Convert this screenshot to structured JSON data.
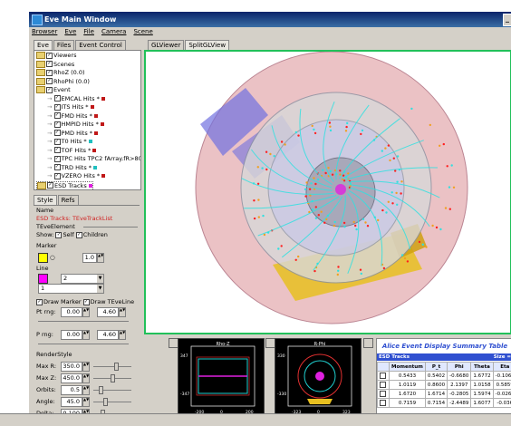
{
  "window": {
    "title": "Eve Main Window",
    "close_label": "_"
  },
  "menu": [
    {
      "label": "Browser"
    },
    {
      "label": "Eve"
    },
    {
      "label": "File"
    },
    {
      "label": "Camera"
    },
    {
      "label": "Scene"
    }
  ],
  "left_tabs": [
    "Eve",
    "Files",
    "Event Control"
  ],
  "viewer_tabs": [
    "GLViewer",
    "SplitGLView"
  ],
  "tree": [
    {
      "label": "Viewers",
      "indent": 0,
      "folder": true,
      "check": true
    },
    {
      "label": "Scenes",
      "indent": 0,
      "folder": true,
      "check": true
    },
    {
      "label": "RhoZ (0.0)",
      "indent": 0,
      "folder": true,
      "check": true
    },
    {
      "label": "RhoPhi (0.0)",
      "indent": 0,
      "folder": true,
      "check": true
    },
    {
      "label": "Event",
      "indent": 0,
      "folder": true,
      "check": true
    },
    {
      "label": "EMCAL Hits *",
      "indent": 1,
      "check": true,
      "color": "#c01818"
    },
    {
      "label": "ITS Hits *",
      "indent": 1,
      "check": true,
      "color": "#c01818"
    },
    {
      "label": "FMD Hits *",
      "indent": 1,
      "check": true,
      "color": "#c01818"
    },
    {
      "label": "HMPID Hits *",
      "indent": 1,
      "check": true,
      "color": "#c01818"
    },
    {
      "label": "PMD Hits *",
      "indent": 1,
      "check": true,
      "color": "#c01818"
    },
    {
      "label": "T0 Hits *",
      "indent": 1,
      "check": true,
      "color": "#20c0c0"
    },
    {
      "label": "TOF Hits *",
      "indent": 1,
      "check": true,
      "color": "#c01818"
    },
    {
      "label": "TPC Hits TPC2 fArray.fR>80",
      "indent": 1,
      "check": true,
      "color": "#20c0c0"
    },
    {
      "label": "TRD Hits *",
      "indent": 1,
      "check": true,
      "color": "#20c0c0"
    },
    {
      "label": "VZERO Hits *",
      "indent": 1,
      "check": true,
      "color": "#c01818"
    },
    {
      "label": "ESD Tracks",
      "indent": 0,
      "folder": true,
      "check": true,
      "color": "#e020e0",
      "selected": true
    }
  ],
  "editor": {
    "tabs": [
      "Style",
      "Refs"
    ],
    "name_label": "Name",
    "name_value": "ESD Tracks: TEveTrackList",
    "group_label": "TEveElement",
    "show_label": "Show:",
    "self_label": "Self",
    "children_label": "Children",
    "marker_label": "Marker",
    "marker_symbol": "○",
    "marker_size": "1.0",
    "line_label": "Line",
    "line_width": "2",
    "line_style": "1",
    "draw_marker_label": "Draw Marker",
    "draw_teveline_label": "Draw TEveLine",
    "pt_label": "Pt rng:",
    "pt_min": "0.00",
    "pt_max": "4.60",
    "p_label": "P rng:",
    "p_min": "0.00",
    "p_max": "4.60",
    "renderstyle_label": "RenderStyle",
    "rs": [
      {
        "label": "Max R:",
        "value": "350.0",
        "level": 0.55
      },
      {
        "label": "Max Z:",
        "value": "450.0",
        "level": 0.45
      },
      {
        "label": "Orbits:",
        "value": "0.5",
        "level": 0.15
      },
      {
        "label": "Angle:",
        "value": "45.0",
        "level": 0.25
      },
      {
        "label": "Delta:",
        "value": "0.100",
        "level": 0.2
      }
    ],
    "colors": {
      "marker": "#ffff00",
      "line": "#ff00ff"
    }
  },
  "minis": [
    {
      "title": "Rho-Z",
      "ticks_y": [
        "347",
        "-347"
      ],
      "ticks_x": [
        "-200",
        "0",
        "200"
      ]
    },
    {
      "title": "R-Phi",
      "ticks_y": [
        "330",
        "-330"
      ],
      "ticks_x": [
        "-323",
        "0",
        "323"
      ]
    }
  ],
  "summary": {
    "title": "Alice Event Display Summary Table",
    "section": "ESD Tracks",
    "size_label": "Size = ",
    "columns": [
      "Momentum",
      "P_t",
      "Phi",
      "Theta",
      "Eta"
    ],
    "rows": [
      [
        "0.5433",
        "0.5402",
        "-0.6680",
        "1.6772",
        "-0.1060"
      ],
      [
        "1.0119",
        "0.8600",
        "2.1397",
        "1.0158",
        "0.5859"
      ],
      [
        "1.6720",
        "1.6714",
        "-0.2805",
        "1.5974",
        "-0.0268"
      ],
      [
        "0.7159",
        "0.7154",
        "-2.4489",
        "1.6077",
        "-0.036"
      ]
    ]
  }
}
